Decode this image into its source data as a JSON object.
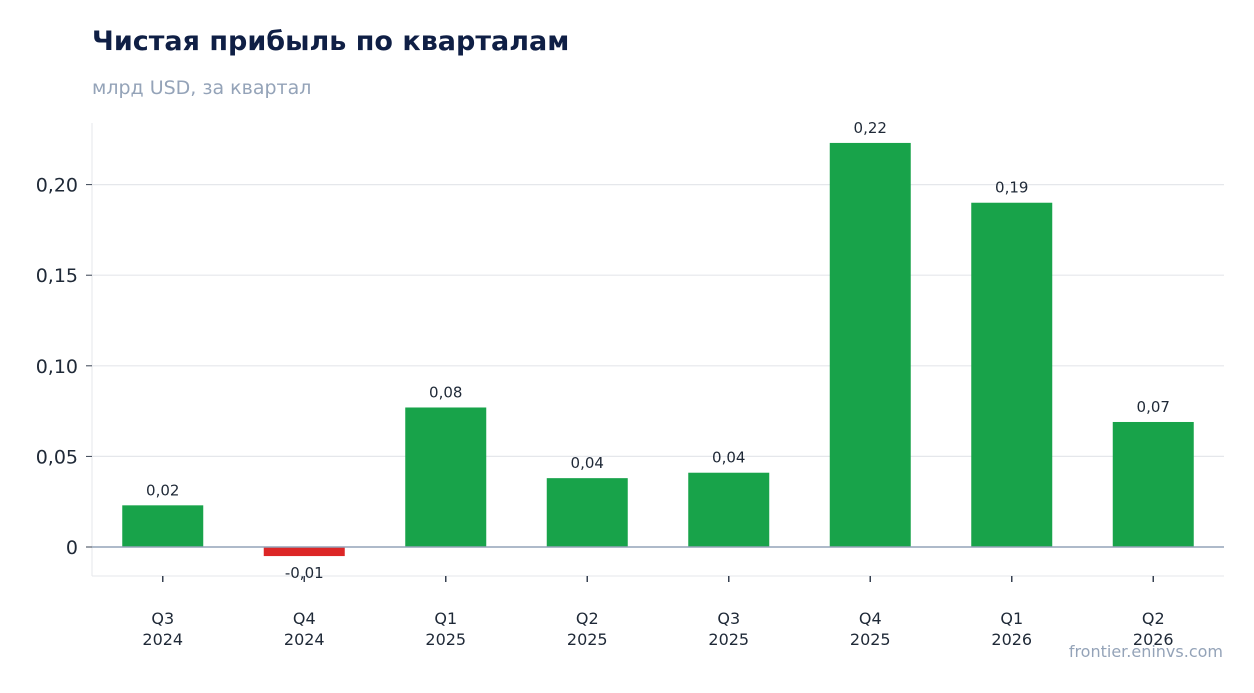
{
  "header": {
    "title": "Чистая прибыль по кварталам",
    "subtitle": "млрд USD, за квартал"
  },
  "watermark": "frontier.eninvs.com",
  "chart_data": {
    "type": "bar",
    "title": "Чистая прибыль по кварталам",
    "subtitle": "млрд USD, за квартал",
    "categories": [
      [
        "Q3",
        "2024"
      ],
      [
        "Q4",
        "2024"
      ],
      [
        "Q1",
        "2025"
      ],
      [
        "Q2",
        "2025"
      ],
      [
        "Q3",
        "2025"
      ],
      [
        "Q4",
        "2025"
      ],
      [
        "Q1",
        "2026"
      ],
      [
        "Q2",
        "2026"
      ]
    ],
    "values": [
      0.023,
      -0.005,
      0.077,
      0.038,
      0.041,
      0.223,
      0.19,
      0.069
    ],
    "data_labels": [
      "0,02",
      "-0,01",
      "0,08",
      "0,04",
      "0,04",
      "0,22",
      "0,19",
      "0,07"
    ],
    "yticks": [
      0,
      0.05,
      0.1,
      0.15,
      0.2
    ],
    "ytick_labels": [
      "0",
      "0,05",
      "0,10",
      "0,15",
      "0,20"
    ],
    "ylim": [
      -0.016,
      0.234
    ],
    "grid": true,
    "legend": "none",
    "colors": {
      "positive": "#18a34a",
      "negative": "#dc2626",
      "grid": "#e5e7eb",
      "zero_line": "#94a3b8",
      "axis": "#e5e7eb"
    }
  }
}
